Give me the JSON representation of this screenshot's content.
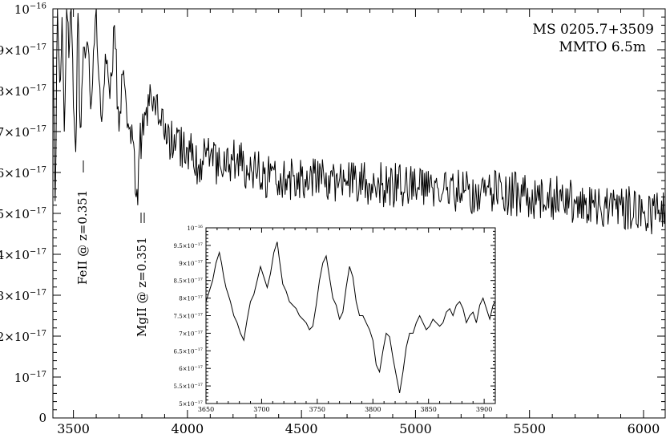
{
  "chart_data": [
    {
      "type": "line",
      "title": "",
      "annotation_lines": [
        "MS 0205.7+3509",
        "MMTO 6.5m"
      ],
      "xlabel": "",
      "ylabel": "",
      "xlim": [
        3410,
        6095
      ],
      "ylim": [
        0,
        10
      ],
      "y_scale_label": "×10⁻¹⁷",
      "x_ticks": [
        3500,
        4000,
        4500,
        5000,
        5500,
        6000
      ],
      "x_tick_labels": [
        "3500",
        "4000",
        "4500",
        "5000",
        "5500",
        "6000"
      ],
      "y_ticks": [
        0,
        1,
        2,
        3,
        4,
        5,
        6,
        7,
        8,
        9,
        10
      ],
      "y_tick_labels": [
        {
          "base": "0",
          "exp": ""
        },
        {
          "base": "10",
          "exp": "−17"
        },
        {
          "base": "2×10",
          "exp": "−17"
        },
        {
          "base": "3×10",
          "exp": "−17"
        },
        {
          "base": "4×10",
          "exp": "−17"
        },
        {
          "base": "5×10",
          "exp": "−17"
        },
        {
          "base": "6×10",
          "exp": "−17"
        },
        {
          "base": "7×10",
          "exp": "−17"
        },
        {
          "base": "8×10",
          "exp": "−17"
        },
        {
          "base": "9×10",
          "exp": "−17"
        },
        {
          "base": "10",
          "exp": "−16"
        }
      ],
      "line_annotations": [
        {
          "text": "FeII @ z=0.351",
          "x": 3520
        },
        {
          "text": "MgII @ z=0.351",
          "x": 3783
        }
      ],
      "series": [
        {
          "x": [
            3410,
            3420,
            3430,
            3440,
            3450,
            3460,
            3470,
            3480,
            3490,
            3500,
            3510,
            3520,
            3530,
            3540,
            3560,
            3580,
            3600,
            3620,
            3640,
            3660,
            3680,
            3700,
            3720,
            3740,
            3760,
            3775,
            3782,
            3790,
            3800,
            3820,
            3840,
            3860,
            3880,
            3900,
            3950,
            4000,
            4050,
            4100,
            4150,
            4200,
            4300,
            4400,
            4500,
            4600,
            4700,
            4800,
            4900,
            5000,
            5100,
            5200,
            5300,
            5400,
            5500,
            5600,
            5700,
            5800,
            5900,
            6000,
            6095
          ],
          "y": [
            9.5,
            5.3,
            10.0,
            8.2,
            9.8,
            7.0,
            10.0,
            8.8,
            10.0,
            7.6,
            6.5,
            9.9,
            7.1,
            8.4,
            9.2,
            7.8,
            10.0,
            7.4,
            8.9,
            7.8,
            9.6,
            7.0,
            8.5,
            7.2,
            6.8,
            5.4,
            5.2,
            6.6,
            6.9,
            7.6,
            7.9,
            7.4,
            7.3,
            6.8,
            6.7,
            6.6,
            6.2,
            6.4,
            6.0,
            6.3,
            6.0,
            5.8,
            5.9,
            5.8,
            5.8,
            5.7,
            5.7,
            5.6,
            5.6,
            5.5,
            5.5,
            5.5,
            5.4,
            5.4,
            5.3,
            5.1,
            5.2,
            5.0,
            5.1
          ]
        }
      ]
    },
    {
      "type": "line",
      "title": "",
      "xlabel": "",
      "ylabel": "",
      "xlim": [
        3650,
        3910
      ],
      "ylim": [
        5,
        10
      ],
      "x_ticks": [
        3650,
        3700,
        3750,
        3800,
        3850,
        3900
      ],
      "x_tick_labels": [
        "3650",
        "3700",
        "3750",
        "3800",
        "3850",
        "3900"
      ],
      "y_ticks": [
        5,
        5.5,
        6,
        6.5,
        7,
        7.5,
        8,
        8.5,
        9,
        9.5,
        10
      ],
      "y_tick_labels": [
        {
          "base": "5×10",
          "exp": "−17"
        },
        {
          "base": "5.5×10",
          "exp": "−17"
        },
        {
          "base": "6×10",
          "exp": "−17"
        },
        {
          "base": "6.5×10",
          "exp": "−17"
        },
        {
          "base": "7×10",
          "exp": "−17"
        },
        {
          "base": "7.5×10",
          "exp": "−17"
        },
        {
          "base": "8×10",
          "exp": "−17"
        },
        {
          "base": "8.5×10",
          "exp": "−17"
        },
        {
          "base": "9×10",
          "exp": "−17"
        },
        {
          "base": "9.5×10",
          "exp": "−17"
        },
        {
          "base": "10",
          "exp": "−16"
        }
      ],
      "series": [
        {
          "x": [
            3650,
            3653,
            3656,
            3659,
            3662,
            3664,
            3666,
            3668,
            3670,
            3672,
            3675,
            3678,
            3681,
            3684,
            3687,
            3690,
            3693,
            3696,
            3699,
            3702,
            3705,
            3708,
            3711,
            3714,
            3716,
            3719,
            3722,
            3725,
            3728,
            3731,
            3734,
            3737,
            3740,
            3743,
            3746,
            3749,
            3752,
            3755,
            3758,
            3761,
            3764,
            3767,
            3770,
            3773,
            3776,
            3779,
            3782,
            3785,
            3788,
            3791,
            3794,
            3797,
            3800,
            3803,
            3806,
            3809,
            3812,
            3815,
            3818,
            3821,
            3824,
            3827,
            3830,
            3833,
            3836,
            3839,
            3842,
            3845,
            3848,
            3851,
            3854,
            3857,
            3860,
            3863,
            3866,
            3869,
            3872,
            3875,
            3878,
            3881,
            3884,
            3887,
            3890,
            3893,
            3896,
            3899,
            3902,
            3905,
            3908,
            3910
          ],
          "y": [
            7.9,
            8.2,
            8.5,
            9.0,
            9.3,
            9.0,
            8.6,
            8.3,
            8.1,
            7.9,
            7.5,
            7.3,
            7.0,
            6.8,
            7.4,
            7.9,
            8.1,
            8.5,
            8.9,
            8.6,
            8.3,
            8.7,
            9.3,
            9.6,
            9.1,
            8.4,
            8.2,
            7.9,
            7.8,
            7.7,
            7.5,
            7.4,
            7.3,
            7.1,
            7.2,
            7.8,
            8.5,
            9.0,
            9.2,
            8.6,
            8.0,
            7.8,
            7.4,
            7.6,
            8.3,
            8.9,
            8.6,
            7.9,
            7.5,
            7.5,
            7.3,
            7.1,
            6.8,
            6.1,
            5.9,
            6.5,
            7.0,
            6.9,
            6.3,
            5.8,
            5.3,
            5.9,
            6.6,
            7.0,
            7.0,
            7.3,
            7.5,
            7.3,
            7.1,
            7.2,
            7.4,
            7.3,
            7.2,
            7.3,
            7.6,
            7.7,
            7.5,
            7.8,
            7.9,
            7.7,
            7.3,
            7.5,
            7.6,
            7.3,
            7.8,
            8.0,
            7.7,
            7.4,
            7.8,
            7.9
          ]
        }
      ]
    }
  ]
}
